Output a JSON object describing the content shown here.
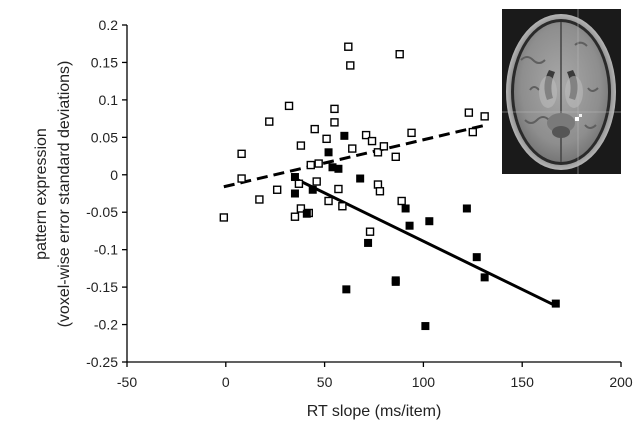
{
  "chart_data": {
    "type": "scatter",
    "title": "",
    "xlabel": "RT slope (ms/item)",
    "ylabel_line1": "pattern expression",
    "ylabel_line2": "(voxel-wise error standard deviations)",
    "xlim": [
      -50,
      200
    ],
    "ylim": [
      -0.25,
      0.2
    ],
    "x_ticks": [
      -50,
      0,
      50,
      100,
      150,
      200
    ],
    "x_tick_labels": [
      "-50",
      "0",
      "50",
      "100",
      "150",
      "200"
    ],
    "y_ticks": [
      -0.25,
      -0.2,
      -0.15,
      -0.1,
      -0.05,
      0,
      0.05,
      0.1,
      0.15,
      0.2
    ],
    "y_tick_labels": [
      "-0.25",
      "-0.2",
      "-0.15",
      "-0.1",
      "-0.05",
      "0",
      "0.05",
      "0.1",
      "0.15",
      "0.2"
    ],
    "grid": false,
    "legend": "none",
    "series": [
      {
        "marker": "open-square",
        "color": "#000000",
        "points": [
          [
            -1,
            -0.057
          ],
          [
            8,
            0.028
          ],
          [
            8,
            -0.005
          ],
          [
            17,
            -0.033
          ],
          [
            22,
            0.071
          ],
          [
            26,
            -0.02
          ],
          [
            32,
            0.092
          ],
          [
            35,
            -0.056
          ],
          [
            37,
            -0.012
          ],
          [
            38,
            0.039
          ],
          [
            38,
            -0.045
          ],
          [
            42,
            -0.051
          ],
          [
            43,
            0.013
          ],
          [
            45,
            0.061
          ],
          [
            46,
            -0.009
          ],
          [
            47,
            0.015
          ],
          [
            51,
            0.048
          ],
          [
            52,
            -0.035
          ],
          [
            55,
            0.088
          ],
          [
            55,
            0.07
          ],
          [
            57,
            -0.019
          ],
          [
            59,
            -0.042
          ],
          [
            62,
            0.171
          ],
          [
            63,
            0.146
          ],
          [
            64,
            0.035
          ],
          [
            71,
            0.053
          ],
          [
            73,
            -0.076
          ],
          [
            74,
            0.045
          ],
          [
            77,
            0.03
          ],
          [
            77,
            -0.013
          ],
          [
            78,
            -0.022
          ],
          [
            80,
            0.038
          ],
          [
            86,
            0.024
          ],
          [
            88,
            0.161
          ],
          [
            89,
            -0.035
          ],
          [
            94,
            0.056
          ],
          [
            123,
            0.083
          ],
          [
            125,
            0.057
          ],
          [
            131,
            0.078
          ]
        ]
      },
      {
        "marker": "filled-square",
        "color": "#000000",
        "points": [
          [
            35,
            -0.003
          ],
          [
            35,
            -0.025
          ],
          [
            41,
            -0.052
          ],
          [
            44,
            -0.02
          ],
          [
            52,
            0.03
          ],
          [
            54,
            0.01
          ],
          [
            57,
            0.008
          ],
          [
            60,
            0.052
          ],
          [
            61,
            -0.153
          ],
          [
            68,
            -0.005
          ],
          [
            72,
            -0.091
          ],
          [
            86,
            -0.141
          ],
          [
            86,
            -0.143
          ],
          [
            91,
            -0.045
          ],
          [
            93,
            -0.068
          ],
          [
            101,
            -0.202
          ],
          [
            103,
            -0.062
          ],
          [
            122,
            -0.045
          ],
          [
            127,
            -0.11
          ],
          [
            131,
            -0.137
          ],
          [
            167,
            -0.172
          ]
        ]
      }
    ],
    "fit_lines": [
      {
        "style": "dashed",
        "x": [
          -1,
          131
        ],
        "y": [
          -0.016,
          0.066
        ]
      },
      {
        "style": "solid",
        "x": [
          35,
          167
        ],
        "y": [
          -0.005,
          -0.175
        ]
      }
    ],
    "inset": "axial brain MRI slice"
  }
}
